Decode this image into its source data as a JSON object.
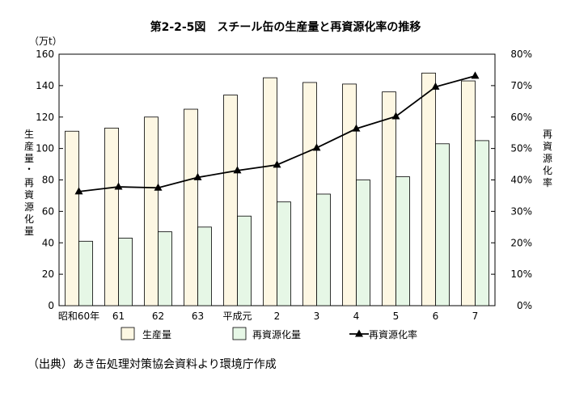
{
  "chart_data": {
    "type": "bar",
    "title": "第2-2-5図　スチール缶の生産量と再資源化率の推移",
    "categories": [
      "昭和60年",
      "61",
      "62",
      "63",
      "平成元",
      "2",
      "3",
      "4",
      "5",
      "6",
      "7"
    ],
    "series": [
      {
        "name": "生産量",
        "type": "bar",
        "axis": "left",
        "color": "#fdf7e3",
        "values": [
          111,
          113,
          120,
          125,
          134,
          145,
          142,
          141,
          136,
          148,
          143
        ]
      },
      {
        "name": "再資源化量",
        "type": "bar",
        "axis": "left",
        "color": "#e6f7e6",
        "values": [
          41,
          43,
          47,
          50,
          57,
          66,
          71,
          80,
          82,
          103,
          105
        ]
      },
      {
        "name": "再資源化率",
        "type": "line",
        "axis": "right",
        "color": "#000000",
        "marker": "triangle",
        "values": [
          36.3,
          37.8,
          37.5,
          40.8,
          43.0,
          44.8,
          50.2,
          56.3,
          60.2,
          69.6,
          73.1
        ]
      }
    ],
    "y_left": {
      "unit": "（万t）",
      "label": "生産量・再資源化量",
      "ylim": [
        0,
        160
      ],
      "ticks": [
        "0",
        "20",
        "40",
        "60",
        "80",
        "100",
        "120",
        "140",
        "160"
      ]
    },
    "y_right": {
      "label": "再資源化率",
      "ylim": [
        0,
        80
      ],
      "ticks": [
        "0%",
        "10%",
        "20%",
        "30%",
        "40%",
        "50%",
        "60%",
        "70%",
        "80%"
      ]
    },
    "grid": false,
    "legend": {
      "placement": "bottom",
      "items": [
        "生産量",
        "再資源化量",
        "再資源化率"
      ]
    }
  },
  "source": "（出典）あき缶処理対策協会資料より環境庁作成"
}
